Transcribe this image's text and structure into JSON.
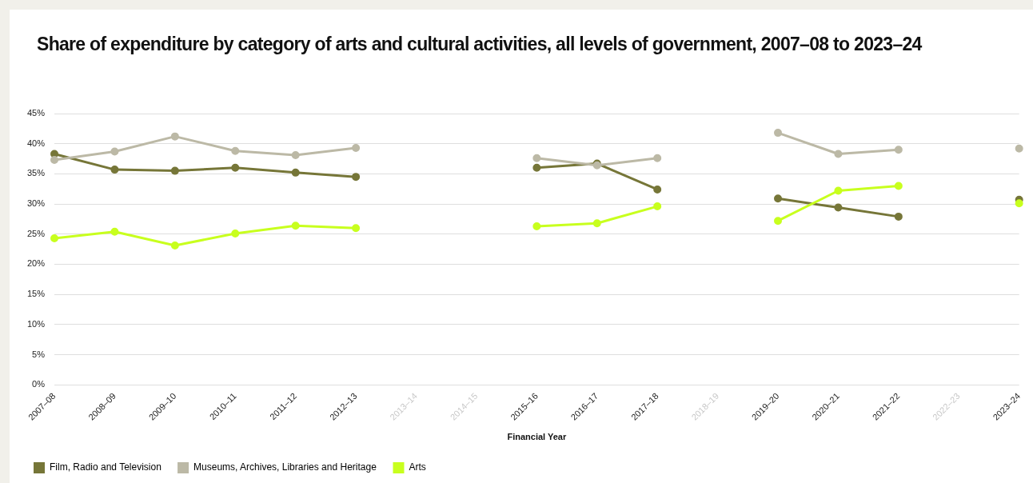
{
  "chart_data": {
    "type": "line",
    "title": "Share of expenditure by category of arts and cultural activities, all levels of government, 2007–08 to 2023–24",
    "xlabel": "Financial Year",
    "categories": [
      "2007–08",
      "2008–09",
      "2009–10",
      "2010–11",
      "2011–12",
      "2012–13",
      "2013–14",
      "2014–15",
      "2015–16",
      "2016–17",
      "2017–18",
      "2018–19",
      "2019–20",
      "2020–21",
      "2021–22",
      "2022–23",
      "2023–24"
    ],
    "series": [
      {
        "name": "Film, Radio and Television",
        "color": "#767638",
        "values": [
          38.3,
          35.7,
          35.5,
          36.0,
          35.2,
          34.5,
          null,
          null,
          36.0,
          36.7,
          32.4,
          null,
          30.9,
          29.4,
          27.9,
          null,
          30.7
        ]
      },
      {
        "name": "Museums, Archives, Libraries and Heritage",
        "color": "#bcb9a6",
        "values": [
          37.3,
          38.7,
          41.2,
          38.8,
          38.1,
          39.3,
          null,
          null,
          37.6,
          36.4,
          37.6,
          null,
          41.8,
          38.3,
          39.0,
          null,
          39.2
        ]
      },
      {
        "name": "Arts",
        "color": "#c8ff1e",
        "values": [
          24.3,
          25.4,
          23.1,
          25.1,
          26.4,
          26.0,
          null,
          null,
          26.3,
          26.8,
          29.6,
          null,
          27.2,
          32.2,
          33.0,
          null,
          30.1
        ]
      }
    ],
    "ylim": [
      0,
      45
    ],
    "yticks": [
      {
        "value": 0,
        "label": "0%"
      },
      {
        "value": 5,
        "label": "5%"
      },
      {
        "value": 10,
        "label": "10%"
      },
      {
        "value": 15,
        "label": "15%"
      },
      {
        "value": 20,
        "label": "20%"
      },
      {
        "value": 25,
        "label": "25%"
      },
      {
        "value": 30,
        "label": "30%"
      },
      {
        "value": 35,
        "label": "35%"
      },
      {
        "value": 40,
        "label": "40%"
      },
      {
        "value": 45,
        "label": "45%"
      }
    ],
    "grid": "y",
    "legend": "bottom left",
    "marker": "circle",
    "line_style": "solid"
  }
}
